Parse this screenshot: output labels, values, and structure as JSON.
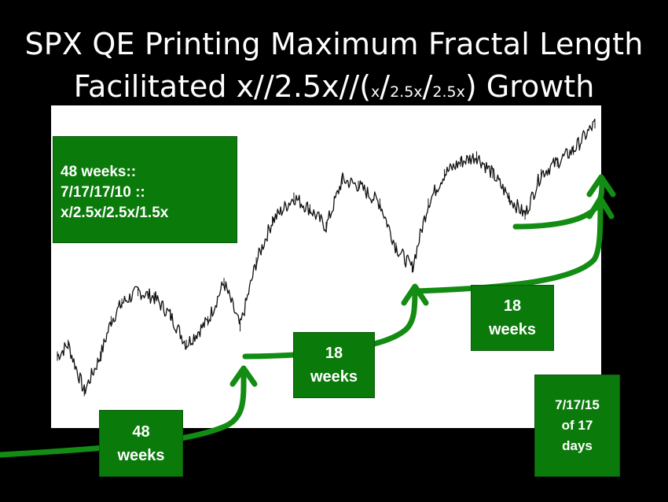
{
  "title": {
    "line1": "SPX QE Printing Maximum Fractal Length",
    "line2_prefix": "Facilitated  x//2.5x//(",
    "line2_sub_x": "x",
    "line2_slash1": "/",
    "line2_sub_a": "2.5x",
    "line2_slash2": "/",
    "line2_sub_b": "2.5x",
    "line2_suffix": ") Growth"
  },
  "info_box": {
    "line1": "48 weeks::",
    "line2": "7/17/17/10 ::",
    "line3": "x/2.5x/2.5x/1.5x"
  },
  "labels": {
    "label_48": {
      "line1": "48",
      "line2": "weeks"
    },
    "label_18a": {
      "line1": "18",
      "line2": "weeks"
    },
    "label_18b": {
      "line1": "18",
      "line2": "weeks"
    },
    "label_date": {
      "line1": "7/17/15",
      "line2": "of 17",
      "line3": "days"
    }
  },
  "colors": {
    "background": "#000000",
    "panel": "#ffffff",
    "price": "#111111",
    "arrow": "#138c13",
    "box": "#0a7a0a"
  },
  "chart_data": {
    "type": "line",
    "title": "",
    "xlabel": "",
    "ylabel": "",
    "axes_visible": false,
    "grid": false,
    "ylim": [
      0,
      100
    ],
    "x": [
      0,
      2,
      5,
      8,
      10,
      12,
      15,
      18,
      21,
      24,
      28,
      31,
      34,
      37,
      40,
      44,
      47,
      50,
      53,
      56,
      60,
      63,
      66,
      69,
      72,
      75,
      78,
      81,
      84,
      87,
      90,
      93,
      96,
      100
    ],
    "series": [
      {
        "values": [
          18,
          22,
          6,
          18,
          30,
          36,
          40,
          38,
          32,
          22,
          30,
          43,
          28,
          50,
          64,
          72,
          68,
          62,
          78,
          76,
          70,
          55,
          48,
          70,
          80,
          84,
          86,
          80,
          72,
          66,
          80,
          84,
          88,
          97
        ]
      }
    ]
  }
}
